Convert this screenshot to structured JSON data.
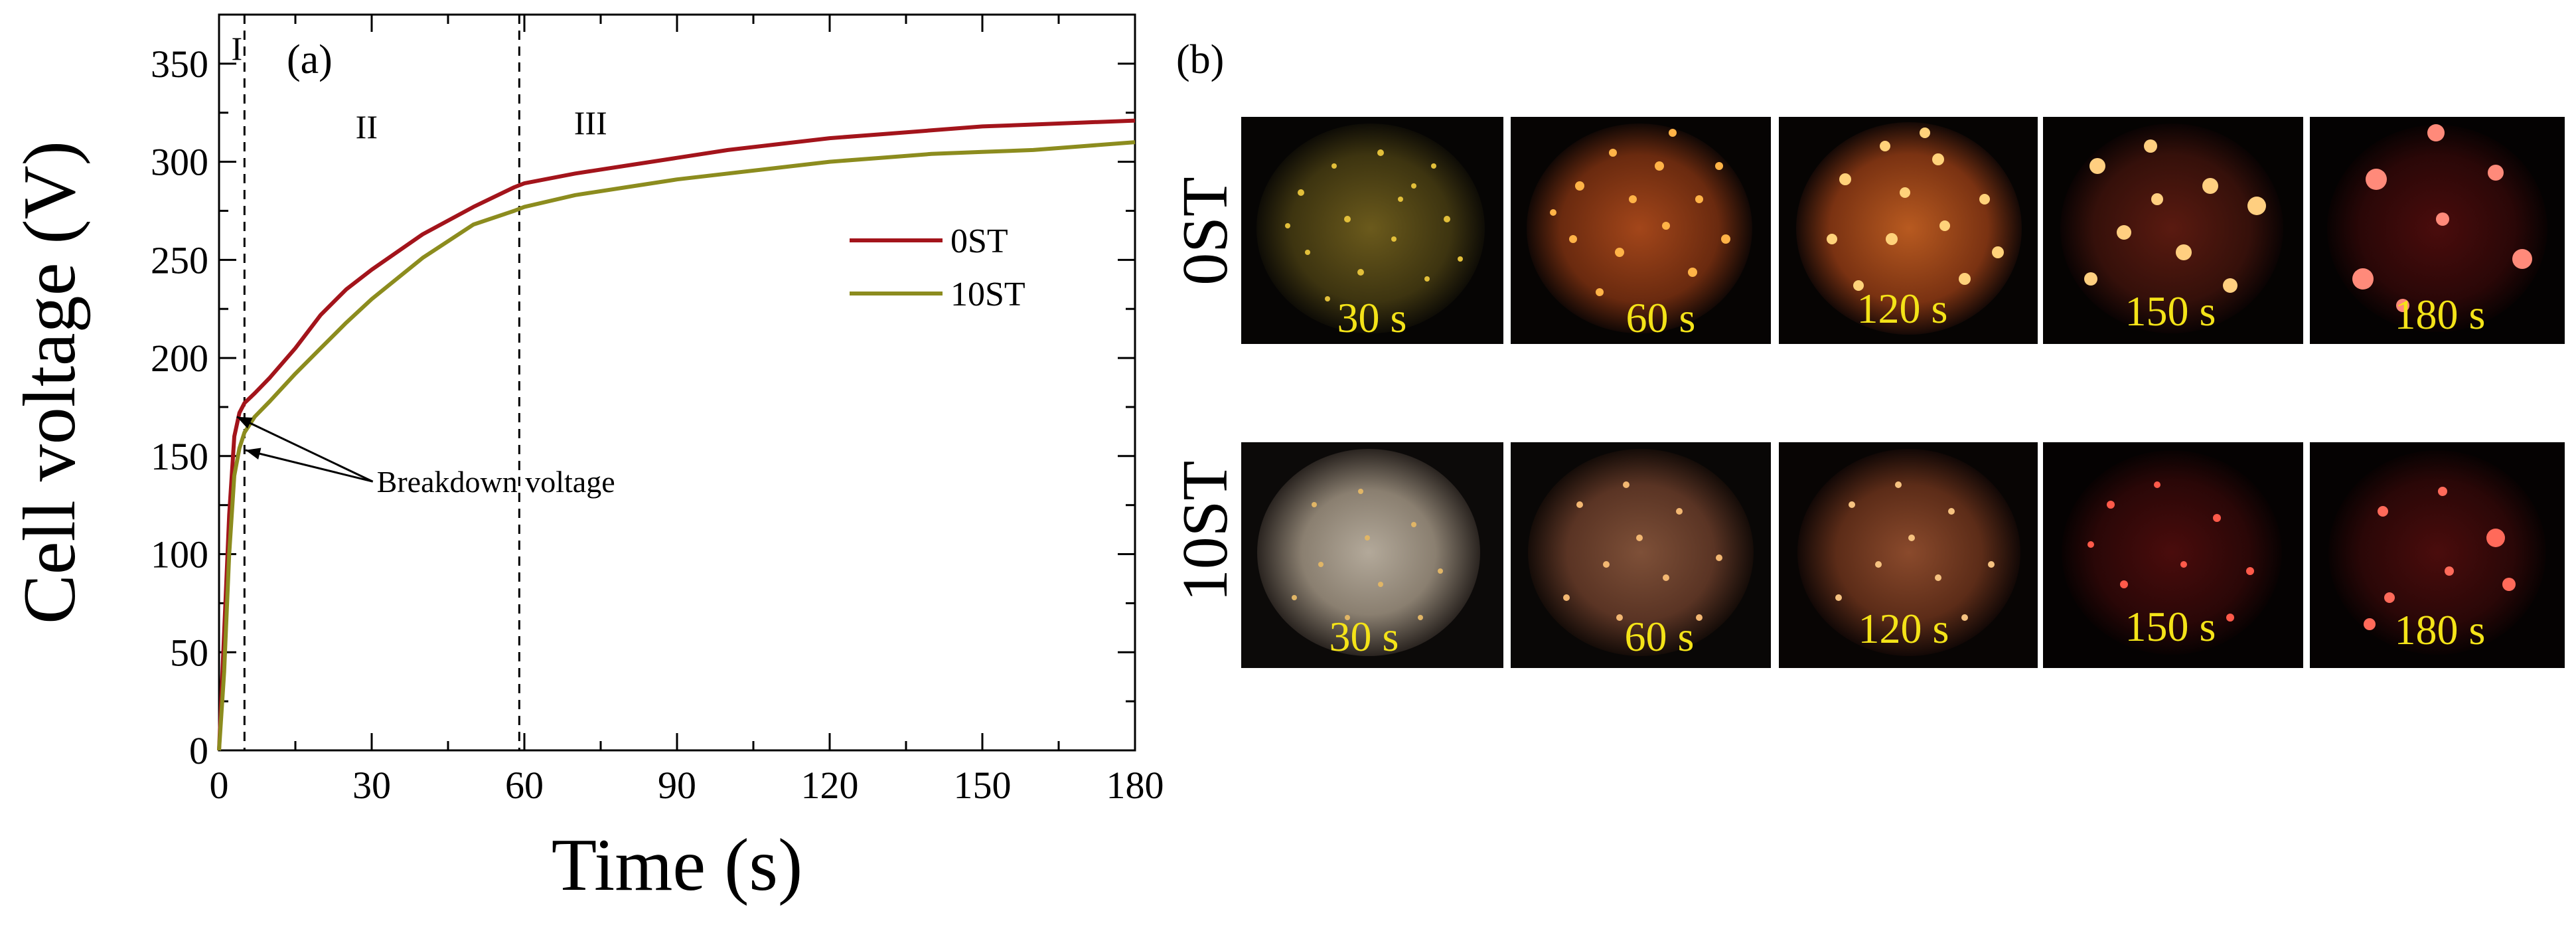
{
  "chart_data": {
    "type": "line",
    "panel_label": "(a)",
    "xlabel": "Time (s)",
    "ylabel": "Cell voltage (V)",
    "xlim": [
      0,
      180
    ],
    "ylim": [
      0,
      375
    ],
    "xticks": [
      0,
      30,
      60,
      90,
      120,
      150,
      180
    ],
    "yticks": [
      0,
      50,
      100,
      150,
      200,
      250,
      300,
      350
    ],
    "xtick_labels": [
      "0",
      "30",
      "60",
      "90",
      "120",
      "150",
      "180"
    ],
    "ytick_labels": [
      "0",
      "50",
      "100",
      "150",
      "200",
      "250",
      "300",
      "350"
    ],
    "grid": false,
    "legend_position": "right-middle",
    "series": [
      {
        "name": "0ST",
        "color": "#a3141b",
        "x": [
          0,
          1,
          2,
          3,
          4,
          5,
          7,
          10,
          15,
          20,
          25,
          30,
          40,
          50,
          58,
          60,
          70,
          80,
          90,
          100,
          110,
          120,
          130,
          140,
          150,
          160,
          170,
          180
        ],
        "y": [
          0,
          60,
          120,
          160,
          172,
          177,
          182,
          190,
          205,
          222,
          235,
          245,
          263,
          277,
          287,
          289,
          294,
          298,
          302,
          306,
          309,
          312,
          314,
          316,
          318,
          319,
          320,
          321
        ]
      },
      {
        "name": "10ST",
        "color": "#8c8c1e",
        "x": [
          0,
          1,
          2,
          3,
          4,
          5,
          7,
          10,
          15,
          20,
          25,
          30,
          40,
          50,
          58,
          60,
          70,
          80,
          90,
          100,
          110,
          120,
          130,
          140,
          150,
          160,
          170,
          180
        ],
        "y": [
          0,
          40,
          100,
          140,
          154,
          162,
          170,
          178,
          192,
          205,
          218,
          230,
          251,
          268,
          275,
          277,
          283,
          287,
          291,
          294,
          297,
          300,
          302,
          304,
          305,
          306,
          308,
          310
        ]
      }
    ],
    "vlines": [
      5,
      59
    ],
    "region_labels": [
      {
        "label": "I",
        "x": 3.5,
        "y": 352
      },
      {
        "label": "II",
        "x": 29,
        "y": 312
      },
      {
        "label": "III",
        "x": 73,
        "y": 314
      }
    ],
    "annotation": {
      "text": "Breakdown voltage",
      "text_x": 31,
      "text_y": 137,
      "arrow_targets": [
        [
          3.5,
          170
        ],
        [
          5.2,
          153
        ]
      ]
    }
  },
  "image_panel": {
    "panel_label": "(b)",
    "rows": [
      {
        "label": "0ST",
        "times": [
          "30 s",
          "60 s",
          "120 s",
          "150 s",
          "180 s"
        ]
      },
      {
        "label": "10ST",
        "times": [
          "30 s",
          "60 s",
          "120 s",
          "150 s",
          "180 s"
        ]
      }
    ]
  }
}
